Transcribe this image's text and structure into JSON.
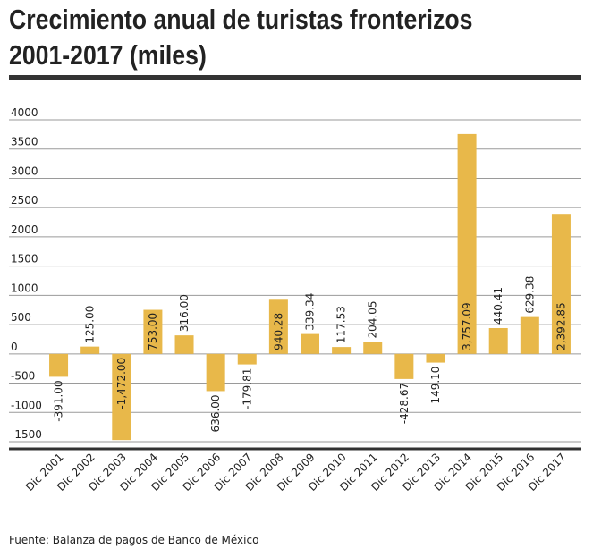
{
  "chart_data": {
    "type": "bar",
    "title_line1": "Crecimiento anual de turistas fronterizos",
    "title_line2": "2001-2017 (miles)",
    "categories": [
      "Dic 2001",
      "Dic 2002",
      "Dic 2003",
      "Dic 2004",
      "Dic 2005",
      "Dic 2006",
      "Dic 2007",
      "Dic 2008",
      "Dic 2009",
      "Dic 2010",
      "Dic 2011",
      "Dic 2012",
      "Dic 2013",
      "Dic 2014",
      "Dic 2015",
      "Dic 2016",
      "Dic 2017"
    ],
    "values": [
      -391.0,
      125.0,
      -1472.0,
      753.0,
      316.0,
      -636.0,
      -179.81,
      940.28,
      339.34,
      117.53,
      204.05,
      -428.67,
      -149.1,
      3757.09,
      440.41,
      629.38,
      2392.85
    ],
    "labels": [
      "-391.00",
      "125.00",
      "-1,472.00",
      "753.00",
      "316.00",
      "-636.00",
      "-179.81",
      "940.28",
      "339.34",
      "117.53",
      "204.05",
      "-428.67",
      "-149.10",
      "3,757.09",
      "440.41",
      "629.38",
      "2,392.85"
    ],
    "yticks": [
      4000,
      3500,
      3000,
      2500,
      2000,
      1500,
      1000,
      500,
      0,
      -500,
      -1000,
      -1500
    ],
    "ylim": [
      -1500,
      4000
    ],
    "xlabel": "",
    "ylabel": "",
    "grid": true,
    "bar_color": "#e8b84a",
    "source": "Fuente: Balanza de pagos de Banco de México"
  }
}
